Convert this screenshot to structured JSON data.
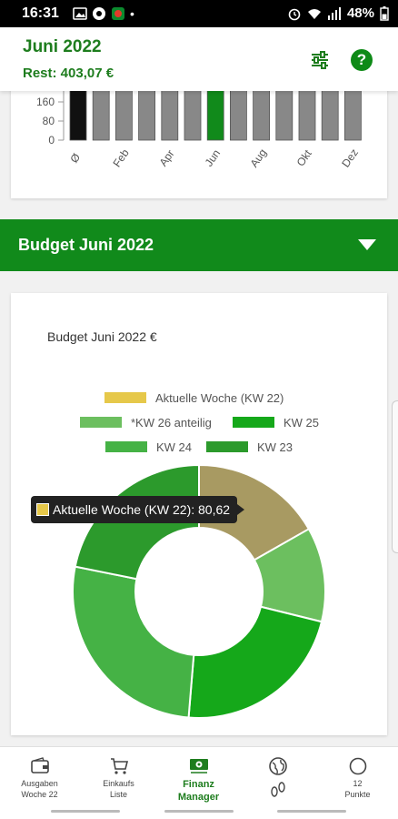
{
  "status_bar": {
    "time": "16:31",
    "battery": "48%"
  },
  "header": {
    "title": "Juni 2022",
    "rest": "Rest: 403,07 €",
    "filter_icon": "sliders-icon",
    "help_label": "?"
  },
  "monthly_chart": {
    "type": "bar",
    "y_ticks": [
      "160",
      "80",
      "0"
    ],
    "x_labels": [
      "Ø",
      "Feb",
      "Apr",
      "Jun",
      "Aug",
      "Okt",
      "Dez"
    ],
    "bars": [
      {
        "color": "#111111"
      },
      {
        "color": "#888888"
      },
      {
        "color": "#888888"
      },
      {
        "color": "#888888"
      },
      {
        "color": "#888888"
      },
      {
        "color": "#888888"
      },
      {
        "color": "#118a1b"
      },
      {
        "color": "#888888"
      },
      {
        "color": "#888888"
      },
      {
        "color": "#888888"
      },
      {
        "color": "#888888"
      },
      {
        "color": "#888888"
      },
      {
        "color": "#888888"
      }
    ]
  },
  "budget_section": {
    "label": "Budget Juni 2022",
    "chevron_icon": "chevron-down-icon"
  },
  "chart_data": {
    "type": "pie",
    "title": "Budget Juni 2022 €",
    "legend": [
      {
        "name": "Aktuelle Woche (KW 22)",
        "color": "#e6c84a"
      },
      {
        "name": "*KW 26 anteilig",
        "color": "#6cbf5f"
      },
      {
        "name": "KW 25",
        "color": "#15a81a"
      },
      {
        "name": "KW 24",
        "color": "#45b245"
      },
      {
        "name": "KW 23",
        "color": "#2c9a2c"
      }
    ],
    "slices": [
      {
        "name": "Aktuelle Woche (KW 22)",
        "value": 80.62,
        "color": "#a89a62"
      },
      {
        "name": "*KW 26 anteilig",
        "value": 58,
        "color": "#6cbf5f"
      },
      {
        "name": "KW 25",
        "value": 108,
        "color": "#15a81a"
      },
      {
        "name": "KW 24",
        "value": 129,
        "color": "#45b245"
      },
      {
        "name": "KW 23",
        "value": 105,
        "color": "#2c9a2c"
      }
    ],
    "tooltip": "Aktuelle Woche (KW 22): 80,62"
  },
  "bottom_nav": [
    {
      "label1": "Ausgaben",
      "label2": "Woche 22",
      "icon": "wallet-icon"
    },
    {
      "label1": "Einkaufs",
      "label2": "Liste",
      "icon": "cart-icon"
    },
    {
      "label1": "Finanz",
      "label2": "Manager",
      "icon": "cash-icon"
    },
    {
      "label1": "",
      "label2": "",
      "icon": "globe-footprints-icon"
    },
    {
      "label1": "12",
      "label2": "Punkte",
      "icon": "circle-icon"
    }
  ]
}
